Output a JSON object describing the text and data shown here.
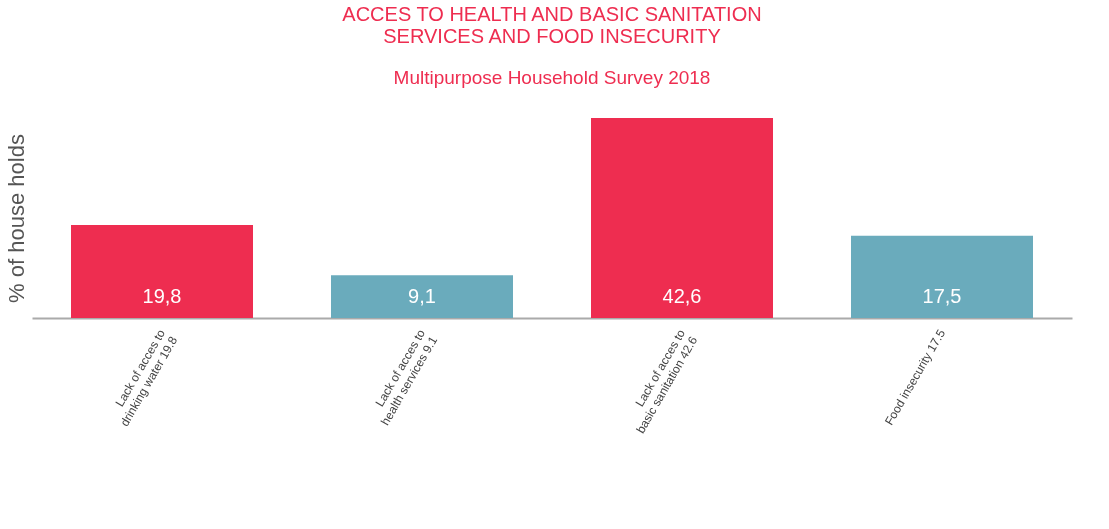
{
  "chart_data": {
    "type": "bar",
    "title": [
      "ACCES TO HEALTH AND BASIC SANITATION",
      "SERVICES AND FOOD INSECURITY"
    ],
    "subtitle": "Multipurpose Household Survey 2018",
    "ylabel": "% of house holds",
    "categories": [
      "Lack of acces to\ndrinking water 19.8",
      "Lack of acces to\nhealth services 9.1",
      "Lack of acces to\nbasic sanitation 42.6",
      "Food insecurity 17.5"
    ],
    "values": [
      19.8,
      9.1,
      42.6,
      17.5
    ],
    "value_labels": [
      "19,8",
      "9,1",
      "42,6",
      "17,5"
    ],
    "colors": [
      "#ee2d50",
      "#6aabbc",
      "#ee2d50",
      "#6aabbc"
    ],
    "grid": false
  }
}
